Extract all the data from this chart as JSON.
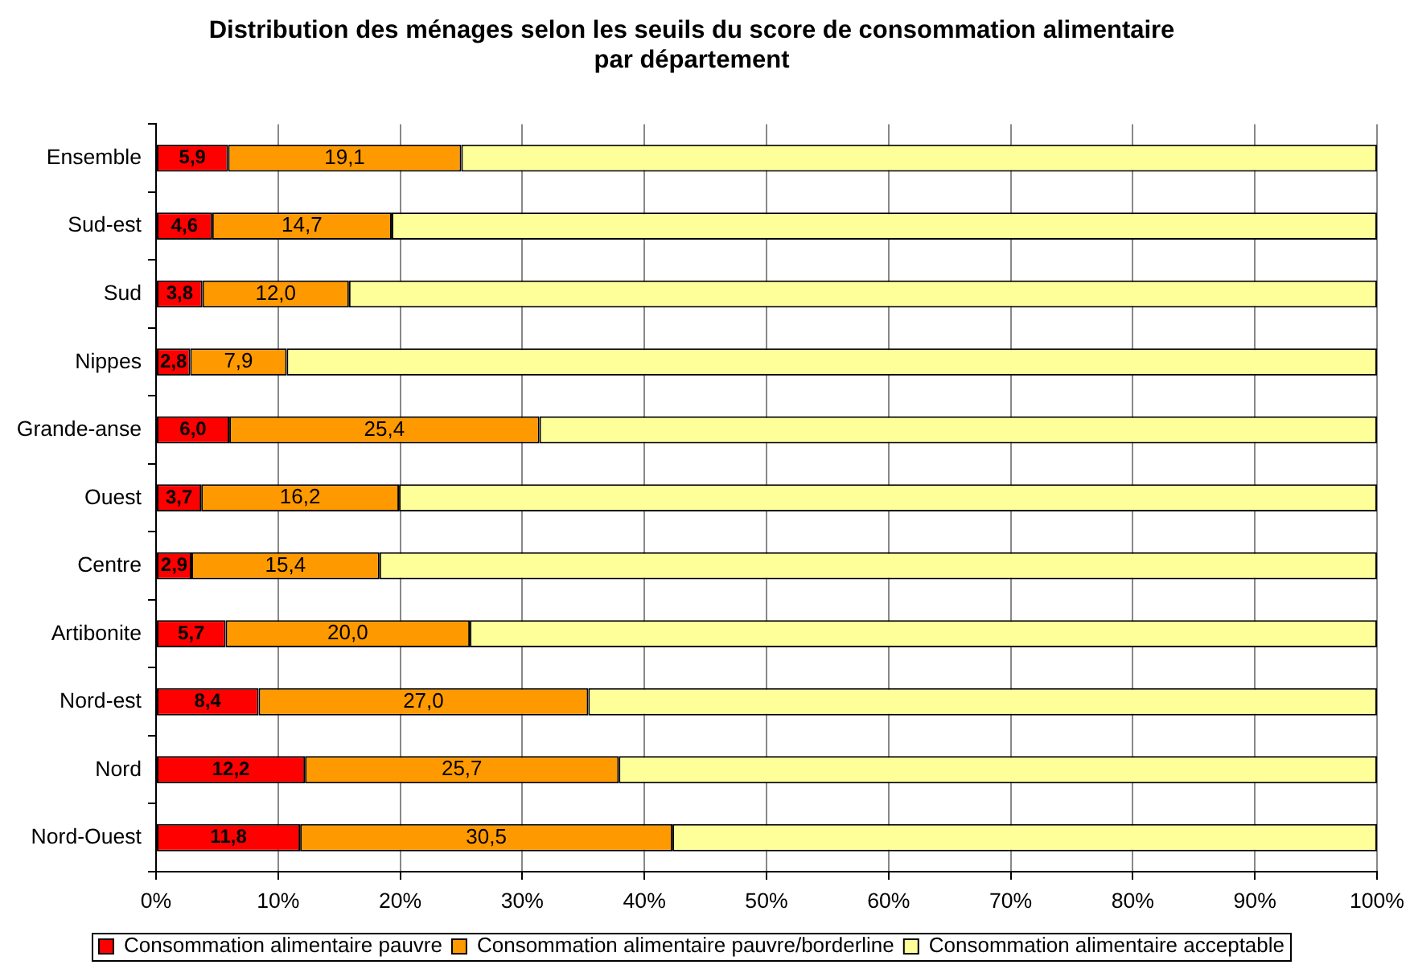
{
  "chart_data": {
    "type": "bar",
    "orientation": "horizontal",
    "stacked": true,
    "title": "Distribution des ménages selon les seuils du score de consommation alimentaire par département",
    "categories": [
      "Ensemble",
      "Sud-est",
      "Sud",
      "Nippes",
      "Grande-anse",
      "Ouest",
      "Centre",
      "Artibonite",
      "Nord-est",
      "Nord",
      "Nord-Ouest"
    ],
    "series": [
      {
        "name": "Consommation alimentaire pauvre",
        "color": "#ff0000",
        "values": [
          5.9,
          4.6,
          3.8,
          2.8,
          6.0,
          3.7,
          2.9,
          5.7,
          8.4,
          12.2,
          11.8
        ],
        "value_labels": [
          "5,9",
          "4,6",
          "3,8",
          "2,8",
          "6,0",
          "3,7",
          "2,9",
          "5,7",
          "8,4",
          "12,2",
          "11,8"
        ]
      },
      {
        "name": "Consommation alimentaire pauvre/borderline",
        "color": "#ff9900",
        "values": [
          19.1,
          14.7,
          12.0,
          7.9,
          25.4,
          16.2,
          15.4,
          20.0,
          27.0,
          25.7,
          30.5
        ],
        "value_labels": [
          "19,1",
          "14,7",
          "12,0",
          "7,9",
          "25,4",
          "16,2",
          "15,4",
          "20,0",
          "27,0",
          "25,7",
          "30,5"
        ]
      },
      {
        "name": "Consommation alimentaire acceptable",
        "color": "#ffff99",
        "values": [
          75.0,
          80.7,
          84.2,
          89.3,
          68.6,
          80.1,
          81.7,
          74.3,
          64.6,
          62.1,
          57.7
        ]
      }
    ],
    "xlim": [
      0,
      100
    ],
    "xticks": [
      {
        "value": 0,
        "label": "0%"
      },
      {
        "value": 10,
        "label": "10%"
      },
      {
        "value": 20,
        "label": "20%"
      },
      {
        "value": 30,
        "label": "30%"
      },
      {
        "value": 40,
        "label": "40%"
      },
      {
        "value": 50,
        "label": "50%"
      },
      {
        "value": 60,
        "label": "60%"
      },
      {
        "value": 70,
        "label": "70%"
      },
      {
        "value": 80,
        "label": "80%"
      },
      {
        "value": 90,
        "label": "90%"
      },
      {
        "value": 100,
        "label": "100%"
      }
    ],
    "grid": "x",
    "legend": "bottom"
  }
}
